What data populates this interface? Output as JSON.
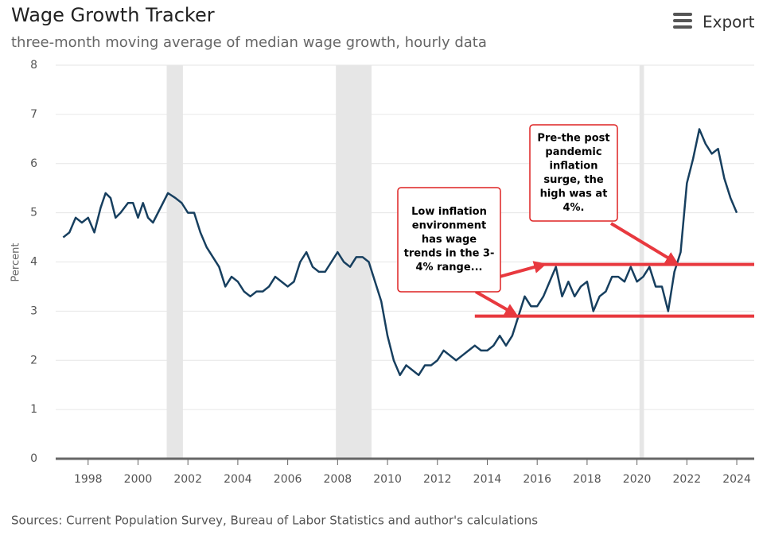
{
  "chart_data": {
    "type": "line",
    "title": "Wage Growth Tracker",
    "subtitle": "three-month moving average of median wage growth, hourly data",
    "export_label": "Export",
    "y_label": "Percent",
    "source": "Sources: Current Population Survey, Bureau of Labor Statistics and author's calculations",
    "xlim": [
      1996.7,
      2024.7
    ],
    "xticks": [
      1998,
      2000,
      2002,
      2004,
      2006,
      2008,
      2010,
      2012,
      2014,
      2016,
      2018,
      2020,
      2022,
      2024
    ],
    "ylim": [
      0,
      8
    ],
    "yticks": [
      0,
      1,
      2,
      3,
      4,
      5,
      6,
      7,
      8
    ],
    "grid": true,
    "shaded_periods": [
      [
        2001.15,
        2001.8
      ],
      [
        2007.93,
        2009.36
      ],
      [
        2020.1,
        2020.28
      ]
    ],
    "series": [
      {
        "name": "Wage growth",
        "color": "#173f5f",
        "x": [
          1997.0,
          1997.25,
          1997.5,
          1997.75,
          1998.0,
          1998.25,
          1998.5,
          1998.7,
          1998.9,
          1999.1,
          1999.3,
          1999.6,
          1999.8,
          2000.0,
          2000.2,
          2000.4,
          2000.6,
          2000.8,
          2001.0,
          2001.2,
          2001.5,
          2001.75,
          2002.0,
          2002.25,
          2002.5,
          2002.75,
          2003.0,
          2003.25,
          2003.5,
          2003.75,
          2004.0,
          2004.25,
          2004.5,
          2004.75,
          2005.0,
          2005.25,
          2005.5,
          2005.75,
          2006.0,
          2006.25,
          2006.5,
          2006.75,
          2007.0,
          2007.25,
          2007.5,
          2007.75,
          2008.0,
          2008.25,
          2008.5,
          2008.75,
          2009.0,
          2009.25,
          2009.5,
          2009.75,
          2010.0,
          2010.25,
          2010.5,
          2010.75,
          2011.0,
          2011.25,
          2011.5,
          2011.75,
          2012.0,
          2012.25,
          2012.5,
          2012.75,
          2013.0,
          2013.25,
          2013.5,
          2013.75,
          2014.0,
          2014.25,
          2014.5,
          2014.75,
          2015.0,
          2015.25,
          2015.5,
          2015.75,
          2016.0,
          2016.25,
          2016.5,
          2016.75,
          2017.0,
          2017.25,
          2017.5,
          2017.75,
          2018.0,
          2018.25,
          2018.5,
          2018.75,
          2019.0,
          2019.25,
          2019.5,
          2019.75,
          2020.0,
          2020.25,
          2020.5,
          2020.75,
          2021.0,
          2021.25,
          2021.5,
          2021.75,
          2022.0,
          2022.25,
          2022.5,
          2022.75,
          2023.0,
          2023.25,
          2023.5,
          2023.75,
          2024.0
        ],
        "values": [
          4.5,
          4.6,
          4.9,
          4.8,
          4.9,
          4.6,
          5.1,
          5.4,
          5.3,
          4.9,
          5.0,
          5.2,
          5.2,
          4.9,
          5.2,
          4.9,
          4.8,
          5.0,
          5.2,
          5.4,
          5.3,
          5.2,
          5.0,
          5.0,
          4.6,
          4.3,
          4.1,
          3.9,
          3.5,
          3.7,
          3.6,
          3.4,
          3.3,
          3.4,
          3.4,
          3.5,
          3.7,
          3.6,
          3.5,
          3.6,
          4.0,
          4.2,
          3.9,
          3.8,
          3.8,
          4.0,
          4.2,
          4.0,
          3.9,
          4.1,
          4.1,
          4.0,
          3.6,
          3.2,
          2.5,
          2.0,
          1.7,
          1.9,
          1.8,
          1.7,
          1.9,
          1.9,
          2.0,
          2.2,
          2.1,
          2.0,
          2.1,
          2.2,
          2.3,
          2.2,
          2.2,
          2.3,
          2.5,
          2.3,
          2.5,
          2.9,
          3.3,
          3.1,
          3.1,
          3.3,
          3.6,
          3.9,
          3.3,
          3.6,
          3.3,
          3.5,
          3.6,
          3.0,
          3.3,
          3.4,
          3.7,
          3.7,
          3.6,
          3.9,
          3.6,
          3.7,
          3.9,
          3.5,
          3.5,
          3.0,
          3.8,
          4.2,
          5.6,
          6.1,
          6.7,
          6.4,
          6.2,
          6.3,
          5.7,
          5.3,
          5.0
        ]
      }
    ],
    "reference_lines": [
      {
        "value": 3.95,
        "from": 2016.1,
        "color": "#e8393f"
      },
      {
        "value": 2.9,
        "from": 2013.5,
        "color": "#e8393f"
      }
    ],
    "annotations": [
      {
        "lines": [
          "Low inflation",
          "environment",
          "has wage",
          "trends in the 3-",
          "4% range..."
        ]
      },
      {
        "lines": [
          "Pre-the post",
          "pandemic",
          "inflation",
          "surge, the",
          "high was at",
          "4%."
        ]
      }
    ]
  }
}
